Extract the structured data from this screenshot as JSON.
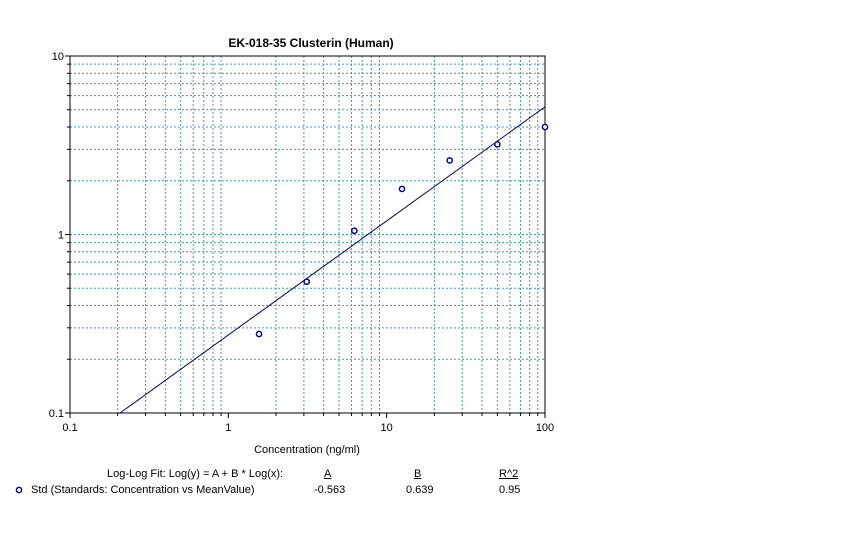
{
  "chart_data": {
    "type": "scatter",
    "title": "EK-018-35 Clusterin (Human)",
    "xlabel": "Concentration (ng/ml)",
    "ylabel": "",
    "xscale": "log",
    "yscale": "log",
    "xlim": [
      0.1,
      100
    ],
    "ylim": [
      0.1,
      10
    ],
    "x_ticks": [
      "0.1",
      "1",
      "10",
      "100"
    ],
    "y_ticks": [
      "0.1",
      "1",
      "10"
    ],
    "grid": true,
    "grid_color": "#3a9bb5",
    "marker_color": "#00008b",
    "line_color": "#00006b",
    "series": [
      {
        "name": "Std (Standards: Concentration vs MeanValue)",
        "x": [
          1.5625,
          3.125,
          6.25,
          12.5,
          25,
          50,
          100
        ],
        "y": [
          0.277,
          0.544,
          1.05,
          1.8,
          2.6,
          3.2,
          4.0
        ]
      }
    ],
    "fit": {
      "type": "log-log",
      "A": -0.563,
      "B": 0.639,
      "R2": 0.95
    }
  },
  "legend": {
    "fit_equation": "Log-Log Fit: Log(y) = A + B * Log(x):",
    "col_a": "A",
    "col_b": "B",
    "col_r2": "R^2",
    "series_label": "Std (Standards: Concentration vs MeanValue)",
    "a_value": "-0.563",
    "b_value": "0.639",
    "r2_value": "0.95"
  }
}
